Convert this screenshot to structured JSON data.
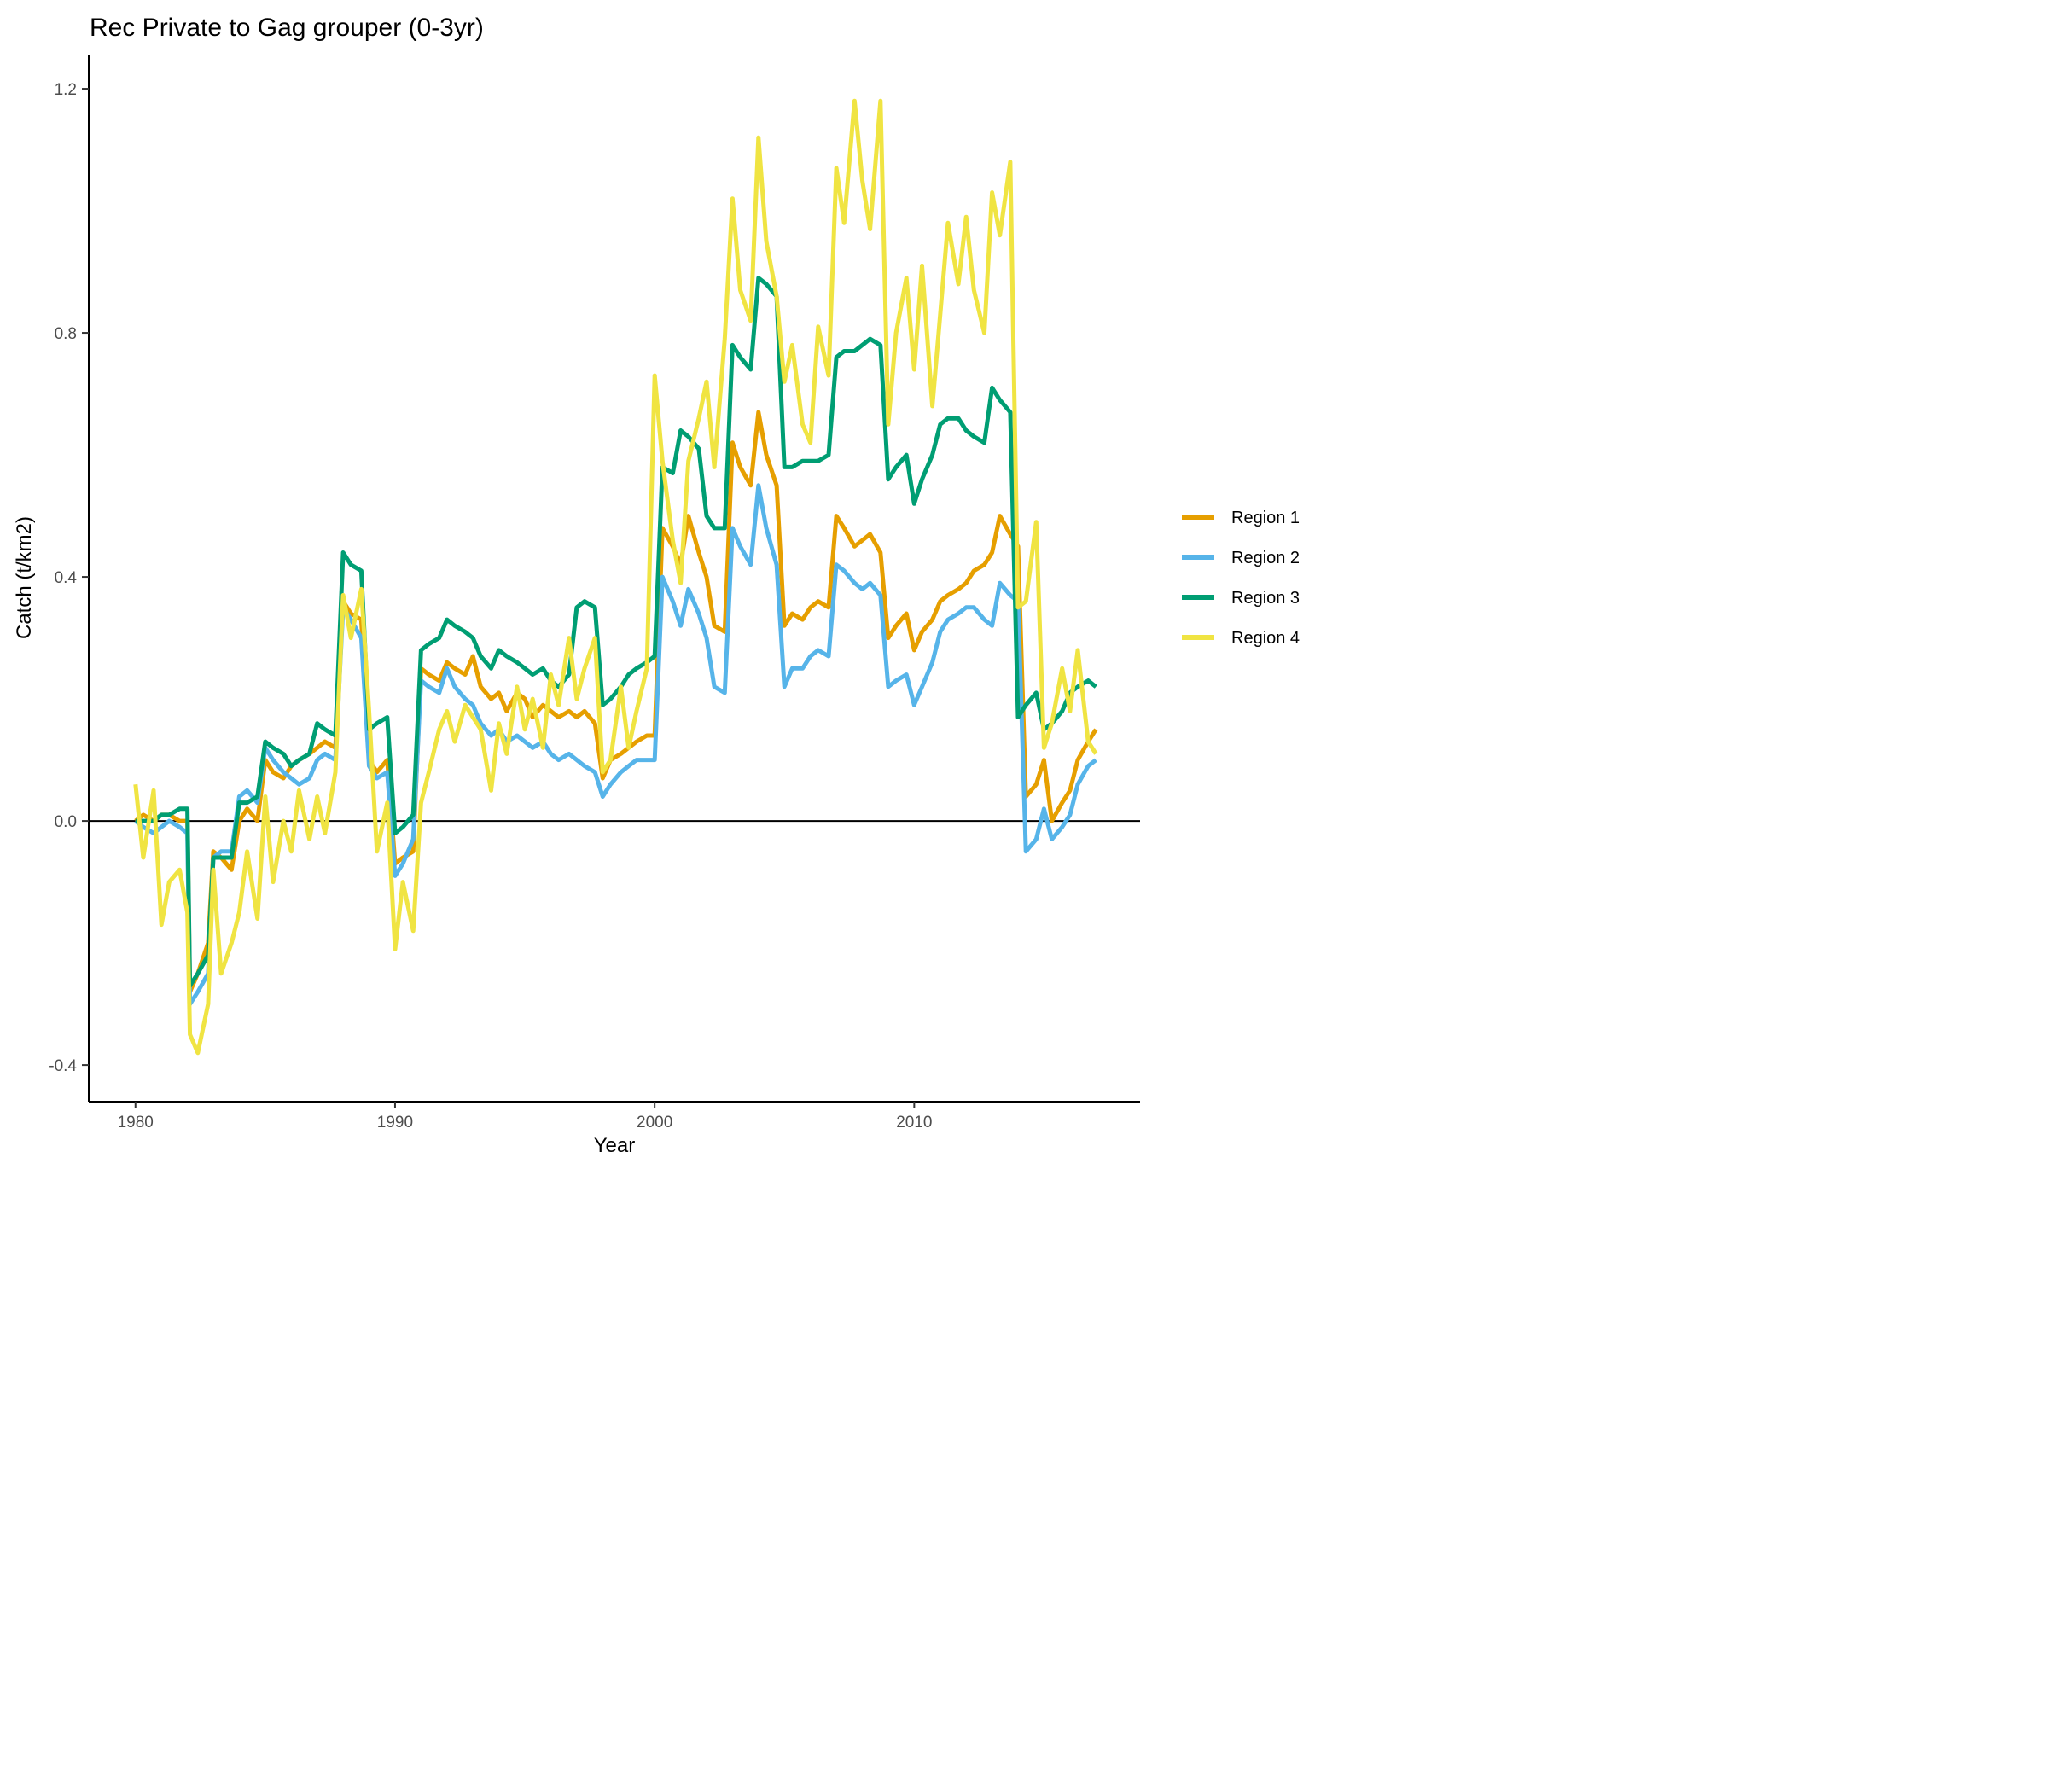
{
  "chart_data": {
    "type": "line",
    "title": "Rec Private to Gag grouper (0-3yr)",
    "xlabel": "Year",
    "ylabel": "Catch (t/km2)",
    "xlim": [
      1978.2,
      2018.7
    ],
    "ylim": [
      -0.46,
      1.256
    ],
    "x_ticks": [
      1980,
      1990,
      2000,
      2010
    ],
    "x_tick_labels": [
      "1980",
      "1990",
      "2000",
      "2010"
    ],
    "y_ticks": [
      -0.4,
      0.0,
      0.4,
      0.8,
      1.2
    ],
    "y_tick_labels": [
      "-0.4",
      "0.0",
      "0.4",
      "0.8",
      "1.2"
    ],
    "zero_line": 0,
    "grid": false,
    "legend_position": "right",
    "series": [
      {
        "name": "Region 1",
        "color": "#E69F00",
        "x": [
          1980.0,
          1980.3,
          1980.7,
          1981.0,
          1981.3,
          1981.7,
          1982.0,
          1982.1,
          1982.4,
          1982.8,
          1983.0,
          1983.3,
          1983.7,
          1984.0,
          1984.3,
          1984.7,
          1985.0,
          1985.3,
          1985.7,
          1986.0,
          1986.3,
          1986.7,
          1987.0,
          1987.3,
          1987.7,
          1988.0,
          1988.3,
          1988.7,
          1989.0,
          1989.3,
          1989.7,
          1990.0,
          1990.3,
          1990.7,
          1991.0,
          1991.3,
          1991.7,
          1992.0,
          1992.3,
          1992.7,
          1993.0,
          1993.3,
          1993.7,
          1994.0,
          1994.3,
          1994.7,
          1995.0,
          1995.3,
          1995.7,
          1996.0,
          1996.3,
          1996.7,
          1997.0,
          1997.3,
          1997.7,
          1998.0,
          1998.3,
          1998.7,
          1999.0,
          1999.3,
          1999.7,
          2000.0,
          2000.3,
          2000.7,
          2001.0,
          2001.3,
          2001.7,
          2002.0,
          2002.3,
          2002.7,
          2003.0,
          2003.3,
          2003.7,
          2004.0,
          2004.3,
          2004.7,
          2005.0,
          2005.3,
          2005.7,
          2006.0,
          2006.3,
          2006.7,
          2007.0,
          2007.3,
          2007.7,
          2008.0,
          2008.3,
          2008.7,
          2009.0,
          2009.3,
          2009.7,
          2010.0,
          2010.3,
          2010.7,
          2011.0,
          2011.3,
          2011.7,
          2012.0,
          2012.3,
          2012.7,
          2013.0,
          2013.3,
          2013.7,
          2014.0,
          2014.3,
          2014.7,
          2015.0,
          2015.3,
          2015.7,
          2016.0,
          2016.3,
          2016.7,
          2017.0
        ],
        "y": [
          0.0,
          0.01,
          0.0,
          0.01,
          0.01,
          0.0,
          0.0,
          -0.28,
          -0.25,
          -0.2,
          -0.05,
          -0.06,
          -0.08,
          0.0,
          0.02,
          0.0,
          0.1,
          0.08,
          0.07,
          0.09,
          0.1,
          0.11,
          0.12,
          0.13,
          0.12,
          0.36,
          0.34,
          0.33,
          0.1,
          0.08,
          0.1,
          -0.07,
          -0.06,
          -0.05,
          0.25,
          0.24,
          0.23,
          0.26,
          0.25,
          0.24,
          0.27,
          0.22,
          0.2,
          0.21,
          0.18,
          0.21,
          0.2,
          0.17,
          0.19,
          0.18,
          0.17,
          0.18,
          0.17,
          0.18,
          0.16,
          0.07,
          0.1,
          0.11,
          0.12,
          0.13,
          0.14,
          0.14,
          0.48,
          0.45,
          0.42,
          0.5,
          0.44,
          0.4,
          0.32,
          0.31,
          0.62,
          0.58,
          0.55,
          0.67,
          0.6,
          0.55,
          0.32,
          0.34,
          0.33,
          0.35,
          0.36,
          0.35,
          0.5,
          0.48,
          0.45,
          0.46,
          0.47,
          0.44,
          0.3,
          0.32,
          0.34,
          0.28,
          0.31,
          0.33,
          0.36,
          0.37,
          0.38,
          0.39,
          0.41,
          0.42,
          0.44,
          0.5,
          0.47,
          0.45,
          0.04,
          0.06,
          0.1,
          0.0,
          0.03,
          0.05,
          0.1,
          0.13,
          0.15
        ]
      },
      {
        "name": "Region 2",
        "color": "#56B4E9",
        "x": [
          1980.0,
          1980.3,
          1980.7,
          1981.0,
          1981.3,
          1981.7,
          1982.0,
          1982.1,
          1982.4,
          1982.8,
          1983.0,
          1983.3,
          1983.7,
          1984.0,
          1984.3,
          1984.7,
          1985.0,
          1985.3,
          1985.7,
          1986.0,
          1986.3,
          1986.7,
          1987.0,
          1987.3,
          1987.7,
          1988.0,
          1988.3,
          1988.7,
          1989.0,
          1989.3,
          1989.7,
          1990.0,
          1990.3,
          1990.7,
          1991.0,
          1991.3,
          1991.7,
          1992.0,
          1992.3,
          1992.7,
          1993.0,
          1993.3,
          1993.7,
          1994.0,
          1994.3,
          1994.7,
          1995.0,
          1995.3,
          1995.7,
          1996.0,
          1996.3,
          1996.7,
          1997.0,
          1997.3,
          1997.7,
          1998.0,
          1998.3,
          1998.7,
          1999.0,
          1999.3,
          1999.7,
          2000.0,
          2000.3,
          2000.7,
          2001.0,
          2001.3,
          2001.7,
          2002.0,
          2002.3,
          2002.7,
          2003.0,
          2003.3,
          2003.7,
          2004.0,
          2004.3,
          2004.7,
          2005.0,
          2005.3,
          2005.7,
          2006.0,
          2006.3,
          2006.7,
          2007.0,
          2007.3,
          2007.7,
          2008.0,
          2008.3,
          2008.7,
          2009.0,
          2009.3,
          2009.7,
          2010.0,
          2010.3,
          2010.7,
          2011.0,
          2011.3,
          2011.7,
          2012.0,
          2012.3,
          2012.7,
          2013.0,
          2013.3,
          2013.7,
          2014.0,
          2014.3,
          2014.7,
          2015.0,
          2015.3,
          2015.7,
          2016.0,
          2016.3,
          2016.7,
          2017.0
        ],
        "y": [
          0.0,
          -0.01,
          -0.02,
          -0.01,
          0.0,
          -0.01,
          -0.02,
          -0.3,
          -0.28,
          -0.25,
          -0.06,
          -0.05,
          -0.05,
          0.04,
          0.05,
          0.03,
          0.12,
          0.1,
          0.08,
          0.07,
          0.06,
          0.07,
          0.1,
          0.11,
          0.1,
          0.35,
          0.33,
          0.3,
          0.09,
          0.07,
          0.08,
          -0.09,
          -0.07,
          -0.03,
          0.23,
          0.22,
          0.21,
          0.25,
          0.22,
          0.2,
          0.19,
          0.16,
          0.14,
          0.15,
          0.13,
          0.14,
          0.13,
          0.12,
          0.13,
          0.11,
          0.1,
          0.11,
          0.1,
          0.09,
          0.08,
          0.04,
          0.06,
          0.08,
          0.09,
          0.1,
          0.1,
          0.1,
          0.4,
          0.36,
          0.32,
          0.38,
          0.34,
          0.3,
          0.22,
          0.21,
          0.48,
          0.45,
          0.42,
          0.55,
          0.48,
          0.42,
          0.22,
          0.25,
          0.25,
          0.27,
          0.28,
          0.27,
          0.42,
          0.41,
          0.39,
          0.38,
          0.39,
          0.37,
          0.22,
          0.23,
          0.24,
          0.19,
          0.22,
          0.26,
          0.31,
          0.33,
          0.34,
          0.35,
          0.35,
          0.33,
          0.32,
          0.39,
          0.37,
          0.36,
          -0.05,
          -0.03,
          0.02,
          -0.03,
          -0.01,
          0.01,
          0.06,
          0.09,
          0.1
        ]
      },
      {
        "name": "Region 3",
        "color": "#009E73",
        "x": [
          1980.0,
          1980.3,
          1980.7,
          1981.0,
          1981.3,
          1981.7,
          1982.0,
          1982.1,
          1982.4,
          1982.8,
          1983.0,
          1983.3,
          1983.7,
          1984.0,
          1984.3,
          1984.7,
          1985.0,
          1985.3,
          1985.7,
          1986.0,
          1986.3,
          1986.7,
          1987.0,
          1987.3,
          1987.7,
          1988.0,
          1988.3,
          1988.7,
          1989.0,
          1989.3,
          1989.7,
          1990.0,
          1990.3,
          1990.7,
          1991.0,
          1991.3,
          1991.7,
          1992.0,
          1992.3,
          1992.7,
          1993.0,
          1993.3,
          1993.7,
          1994.0,
          1994.3,
          1994.7,
          1995.0,
          1995.3,
          1995.7,
          1996.0,
          1996.3,
          1996.7,
          1997.0,
          1997.3,
          1997.7,
          1998.0,
          1998.3,
          1998.7,
          1999.0,
          1999.3,
          1999.7,
          2000.0,
          2000.3,
          2000.7,
          2001.0,
          2001.3,
          2001.7,
          2002.0,
          2002.3,
          2002.7,
          2003.0,
          2003.3,
          2003.7,
          2004.0,
          2004.3,
          2004.7,
          2005.0,
          2005.3,
          2005.7,
          2006.0,
          2006.3,
          2006.7,
          2007.0,
          2007.3,
          2007.7,
          2008.0,
          2008.3,
          2008.7,
          2009.0,
          2009.3,
          2009.7,
          2010.0,
          2010.3,
          2010.7,
          2011.0,
          2011.3,
          2011.7,
          2012.0,
          2012.3,
          2012.7,
          2013.0,
          2013.3,
          2013.7,
          2014.0,
          2014.3,
          2014.7,
          2015.0,
          2015.3,
          2015.7,
          2016.0,
          2016.3,
          2016.7,
          2017.0
        ],
        "y": [
          0.0,
          0.0,
          0.0,
          0.01,
          0.01,
          0.02,
          0.02,
          -0.27,
          -0.25,
          -0.22,
          -0.06,
          -0.06,
          -0.06,
          0.03,
          0.03,
          0.04,
          0.13,
          0.12,
          0.11,
          0.09,
          0.1,
          0.11,
          0.16,
          0.15,
          0.14,
          0.44,
          0.42,
          0.41,
          0.15,
          0.16,
          0.17,
          -0.02,
          -0.01,
          0.01,
          0.28,
          0.29,
          0.3,
          0.33,
          0.32,
          0.31,
          0.3,
          0.27,
          0.25,
          0.28,
          0.27,
          0.26,
          0.25,
          0.24,
          0.25,
          0.23,
          0.22,
          0.24,
          0.35,
          0.36,
          0.35,
          0.19,
          0.2,
          0.22,
          0.24,
          0.25,
          0.26,
          0.27,
          0.58,
          0.57,
          0.64,
          0.63,
          0.61,
          0.5,
          0.48,
          0.48,
          0.78,
          0.76,
          0.74,
          0.89,
          0.88,
          0.86,
          0.58,
          0.58,
          0.59,
          0.59,
          0.59,
          0.6,
          0.76,
          0.77,
          0.77,
          0.78,
          0.79,
          0.78,
          0.56,
          0.58,
          0.6,
          0.52,
          0.56,
          0.6,
          0.65,
          0.66,
          0.66,
          0.64,
          0.63,
          0.62,
          0.71,
          0.69,
          0.67,
          0.17,
          0.19,
          0.21,
          0.15,
          0.16,
          0.18,
          0.21,
          0.22,
          0.23,
          0.22
        ]
      },
      {
        "name": "Region 4",
        "color": "#F0E442",
        "x": [
          1980.0,
          1980.3,
          1980.7,
          1981.0,
          1981.3,
          1981.7,
          1982.0,
          1982.1,
          1982.4,
          1982.8,
          1983.0,
          1983.3,
          1983.7,
          1984.0,
          1984.3,
          1984.7,
          1985.0,
          1985.3,
          1985.7,
          1986.0,
          1986.3,
          1986.7,
          1987.0,
          1987.3,
          1987.7,
          1988.0,
          1988.3,
          1988.7,
          1989.0,
          1989.3,
          1989.7,
          1990.0,
          1990.3,
          1990.7,
          1991.0,
          1991.3,
          1991.7,
          1992.0,
          1992.3,
          1992.7,
          1993.0,
          1993.3,
          1993.7,
          1994.0,
          1994.3,
          1994.7,
          1995.0,
          1995.3,
          1995.7,
          1996.0,
          1996.3,
          1996.7,
          1997.0,
          1997.3,
          1997.7,
          1998.0,
          1998.3,
          1998.7,
          1999.0,
          1999.3,
          1999.7,
          2000.0,
          2000.3,
          2000.7,
          2001.0,
          2001.3,
          2001.7,
          2002.0,
          2002.3,
          2002.7,
          2003.0,
          2003.3,
          2003.7,
          2004.0,
          2004.3,
          2004.7,
          2005.0,
          2005.3,
          2005.7,
          2006.0,
          2006.3,
          2006.7,
          2007.0,
          2007.3,
          2007.7,
          2008.0,
          2008.3,
          2008.7,
          2009.0,
          2009.3,
          2009.7,
          2010.0,
          2010.3,
          2010.7,
          2011.0,
          2011.3,
          2011.7,
          2012.0,
          2012.3,
          2012.7,
          2013.0,
          2013.3,
          2013.7,
          2014.0,
          2014.3,
          2014.7,
          2015.0,
          2015.3,
          2015.7,
          2016.0,
          2016.3,
          2016.7,
          2017.0
        ],
        "y": [
          0.06,
          -0.06,
          0.05,
          -0.17,
          -0.1,
          -0.08,
          -0.15,
          -0.35,
          -0.38,
          -0.3,
          -0.08,
          -0.25,
          -0.2,
          -0.15,
          -0.05,
          -0.16,
          0.04,
          -0.1,
          0.0,
          -0.05,
          0.05,
          -0.03,
          0.04,
          -0.02,
          0.08,
          0.37,
          0.3,
          0.38,
          0.18,
          -0.05,
          0.03,
          -0.21,
          -0.1,
          -0.18,
          0.03,
          0.08,
          0.15,
          0.18,
          0.13,
          0.19,
          0.17,
          0.15,
          0.05,
          0.16,
          0.11,
          0.22,
          0.15,
          0.2,
          0.12,
          0.24,
          0.19,
          0.3,
          0.2,
          0.25,
          0.3,
          0.08,
          0.1,
          0.22,
          0.12,
          0.18,
          0.25,
          0.73,
          0.59,
          0.46,
          0.39,
          0.59,
          0.66,
          0.72,
          0.58,
          0.79,
          1.02,
          0.87,
          0.82,
          1.12,
          0.95,
          0.86,
          0.72,
          0.78,
          0.65,
          0.62,
          0.81,
          0.73,
          1.07,
          0.98,
          1.18,
          1.05,
          0.97,
          1.18,
          0.65,
          0.8,
          0.89,
          0.74,
          0.91,
          0.68,
          0.83,
          0.98,
          0.88,
          0.99,
          0.87,
          0.8,
          1.03,
          0.96,
          1.08,
          0.35,
          0.36,
          0.49,
          0.12,
          0.16,
          0.25,
          0.18,
          0.28,
          0.13,
          0.11
        ]
      }
    ]
  }
}
